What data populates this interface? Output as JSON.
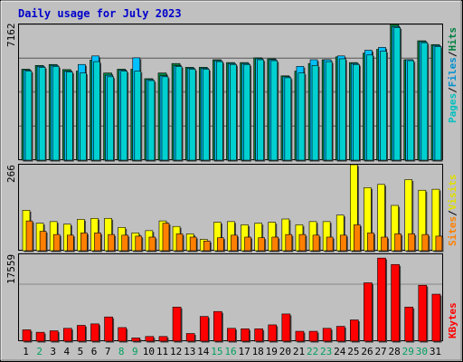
{
  "title": "Daily usage for July 2023",
  "colors": {
    "hits": "#008040",
    "files": "#00c0ff",
    "pages": "#00d0d0",
    "visits": "#ffff00",
    "sites": "#ff8000",
    "kbytes": "#ff0000",
    "day_normal": "#008040",
    "day_weekend": "#00a060"
  },
  "chart_data": [
    {
      "type": "bar",
      "name": "hits-files-pages",
      "max_label": "7162",
      "ylim": [
        0,
        7162
      ],
      "legend": {
        "pages": "Pages",
        "files": "Files",
        "hits": "Hits",
        "sep": "/"
      },
      "categories": [
        "1",
        "2",
        "3",
        "4",
        "5",
        "6",
        "7",
        "8",
        "9",
        "10",
        "11",
        "12",
        "13",
        "14",
        "15",
        "16",
        "17",
        "18",
        "19",
        "20",
        "21",
        "22",
        "23",
        "24",
        "25",
        "26",
        "27",
        "28",
        "29",
        "30",
        "31"
      ],
      "series": [
        {
          "name": "Hits",
          "values": [
            4800,
            5000,
            5050,
            4780,
            4700,
            5280,
            4600,
            4800,
            4800,
            4300,
            4600,
            5100,
            4900,
            4900,
            5300,
            5150,
            5150,
            5400,
            5350,
            4450,
            4700,
            5100,
            5300,
            5450,
            5150,
            5650,
            5850,
            7162,
            5300,
            6300,
            6100
          ]
        },
        {
          "name": "Files",
          "values": [
            4750,
            4950,
            5000,
            4700,
            5050,
            5500,
            4480,
            4750,
            5400,
            4250,
            4450,
            4980,
            4850,
            4850,
            5250,
            5100,
            5100,
            5350,
            5300,
            4400,
            4950,
            5300,
            5300,
            5500,
            5100,
            5800,
            5950,
            7050,
            5300,
            6250,
            6050
          ]
        },
        {
          "name": "Pages",
          "values": [
            4700,
            4900,
            4950,
            4650,
            4600,
            5200,
            4400,
            4700,
            4700,
            4200,
            4400,
            4950,
            4800,
            4800,
            5200,
            5050,
            5050,
            5300,
            5250,
            4350,
            4600,
            5000,
            5200,
            5350,
            5050,
            5550,
            5750,
            7000,
            5250,
            6200,
            6000
          ]
        }
      ]
    },
    {
      "type": "bar",
      "name": "visits-sites",
      "max_label": "266",
      "ylim": [
        0,
        266
      ],
      "legend": {
        "sites": "Sites",
        "visits": "Visits",
        "sep": "/"
      },
      "categories": [
        "1",
        "2",
        "3",
        "4",
        "5",
        "6",
        "7",
        "8",
        "9",
        "10",
        "11",
        "12",
        "13",
        "14",
        "15",
        "16",
        "17",
        "18",
        "19",
        "20",
        "21",
        "22",
        "23",
        "24",
        "25",
        "26",
        "27",
        "28",
        "29",
        "30",
        "31"
      ],
      "series": [
        {
          "name": "Visits",
          "values": [
            125,
            85,
            90,
            82,
            97,
            100,
            100,
            72,
            55,
            62,
            92,
            75,
            52,
            35,
            88,
            90,
            80,
            85,
            88,
            98,
            80,
            90,
            90,
            110,
            266,
            195,
            205,
            140,
            220,
            187,
            190
          ]
        },
        {
          "name": "Sites",
          "values": [
            92,
            60,
            50,
            48,
            55,
            55,
            50,
            48,
            45,
            42,
            85,
            52,
            42,
            30,
            40,
            48,
            42,
            40,
            42,
            50,
            50,
            48,
            42,
            48,
            80,
            55,
            42,
            52,
            52,
            50,
            45
          ]
        }
      ]
    },
    {
      "type": "bar",
      "name": "kbytes",
      "max_label": "17559",
      "ylim": [
        0,
        17559
      ],
      "legend": {
        "kbytes": "KBytes"
      },
      "categories": [
        "1",
        "2",
        "3",
        "4",
        "5",
        "6",
        "7",
        "8",
        "9",
        "10",
        "11",
        "12",
        "13",
        "14",
        "15",
        "16",
        "17",
        "18",
        "19",
        "20",
        "21",
        "22",
        "23",
        "24",
        "25",
        "26",
        "27",
        "28",
        "29",
        "30",
        "31"
      ],
      "series": [
        {
          "name": "KBytes",
          "values": [
            2300,
            1800,
            2100,
            2600,
            3200,
            3500,
            4900,
            2750,
            650,
            950,
            950,
            6900,
            1550,
            5000,
            6000,
            2600,
            2500,
            2500,
            3300,
            5500,
            2000,
            2000,
            2600,
            3000,
            4300,
            11800,
            16800,
            15500,
            6900,
            11300,
            9500
          ]
        }
      ]
    }
  ],
  "days": [
    {
      "label": "1",
      "weekend": false
    },
    {
      "label": "2",
      "weekend": true
    },
    {
      "label": "3",
      "weekend": false
    },
    {
      "label": "4",
      "weekend": false
    },
    {
      "label": "5",
      "weekend": false
    },
    {
      "label": "6",
      "weekend": false
    },
    {
      "label": "7",
      "weekend": false
    },
    {
      "label": "8",
      "weekend": true
    },
    {
      "label": "9",
      "weekend": true
    },
    {
      "label": "10",
      "weekend": false
    },
    {
      "label": "11",
      "weekend": false
    },
    {
      "label": "12",
      "weekend": false
    },
    {
      "label": "13",
      "weekend": false
    },
    {
      "label": "14",
      "weekend": false
    },
    {
      "label": "15",
      "weekend": true
    },
    {
      "label": "16",
      "weekend": true
    },
    {
      "label": "17",
      "weekend": false
    },
    {
      "label": "18",
      "weekend": false
    },
    {
      "label": "19",
      "weekend": false
    },
    {
      "label": "20",
      "weekend": false
    },
    {
      "label": "21",
      "weekend": false
    },
    {
      "label": "22",
      "weekend": true
    },
    {
      "label": "23",
      "weekend": true
    },
    {
      "label": "24",
      "weekend": false
    },
    {
      "label": "25",
      "weekend": false
    },
    {
      "label": "26",
      "weekend": false
    },
    {
      "label": "27",
      "weekend": false
    },
    {
      "label": "28",
      "weekend": false
    },
    {
      "label": "29",
      "weekend": true
    },
    {
      "label": "30",
      "weekend": true
    },
    {
      "label": "31",
      "weekend": false
    }
  ]
}
